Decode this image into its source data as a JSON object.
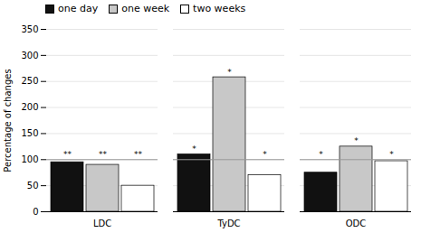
{
  "chart_data": {
    "type": "bar",
    "categories": [
      "LDC",
      "TyDC",
      "ODC"
    ],
    "series": [
      {
        "name": "one day",
        "color": "#111111",
        "values": [
          95,
          110,
          75
        ],
        "annotations": [
          "**",
          "*",
          "*"
        ]
      },
      {
        "name": "one week",
        "color": "#c8c8c8",
        "values": [
          90,
          258,
          125
        ],
        "annotations": [
          "**",
          "*",
          "*"
        ]
      },
      {
        "name": "two weeks",
        "color": "#ffffff",
        "values": [
          50,
          70,
          97
        ],
        "annotations": [
          "**",
          "*",
          "*"
        ]
      }
    ],
    "y_label": "Percentage of changes",
    "ylim": [
      0,
      350
    ],
    "yticks": [
      0,
      50,
      100,
      150,
      200,
      250,
      300,
      350
    ],
    "reference_line": {
      "y": 100,
      "color": "#999999"
    },
    "grid": true,
    "legend": "upper left"
  }
}
